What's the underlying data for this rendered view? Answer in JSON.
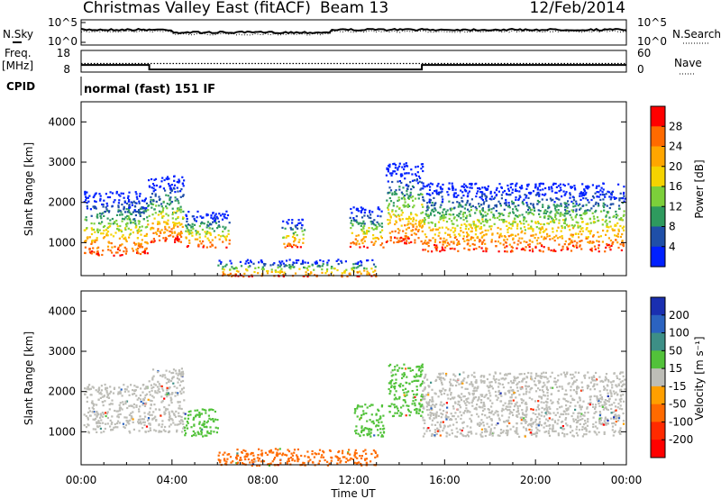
{
  "header": {
    "station": "Christmas Valley East (fitACF)",
    "beam": "Beam 13",
    "date": "12/Feb/2014"
  },
  "housekeeping": {
    "nsky_label": "N.Sky",
    "nsky_ticks": [
      "10^5",
      "10^0"
    ],
    "nsearch_label": "N.Search",
    "nsearch_ticks": [
      "10^5",
      "10^0"
    ],
    "freq_label_line1": "Freq.",
    "freq_label_line2": "[MHz]",
    "freq_ticks": [
      "18",
      "8"
    ],
    "nave_label": "Nave",
    "nave_ticks": [
      "60",
      "0"
    ],
    "cpid_label": "CPID",
    "cpid_text": "normal (fast) 151 IF"
  },
  "power_panel": {
    "ylabel": "Slant Range [km]",
    "yticks": [
      "4000",
      "3000",
      "2000",
      "1000"
    ],
    "colorbar_label": "Power [dB]",
    "colorbar_ticks": [
      "28",
      "24",
      "20",
      "16",
      "12",
      "8",
      "4"
    ],
    "colors": [
      "#ff0000",
      "#ff6a00",
      "#ffa600",
      "#f5d300",
      "#7ccf3a",
      "#2e9a5e",
      "#1f4fa8",
      "#0020ff"
    ]
  },
  "velocity_panel": {
    "ylabel": "Slant Range [km]",
    "yticks": [
      "4000",
      "3000",
      "2000",
      "1000"
    ],
    "colorbar_label": "Velocity [m s⁻¹]",
    "colorbar_ticks": [
      "200",
      "100",
      "50",
      "15",
      "-15",
      "-50",
      "-100",
      "-200"
    ],
    "colors": [
      "#1a2fb0",
      "#2b63c0",
      "#3d8f86",
      "#52c23a",
      "#bdbdb7",
      "#ff9f00",
      "#ff6a00",
      "#ff2a00",
      "#ff0000"
    ]
  },
  "x_axis": {
    "ticks": [
      "00:00",
      "04:00",
      "08:00",
      "12:00",
      "16:00",
      "20:00",
      "00:00"
    ],
    "label": "Time UT"
  },
  "chart_data": {
    "type": "heatmap",
    "x_range_hours": [
      0,
      24
    ],
    "y_range_km": [
      180,
      4500
    ],
    "frequency_mhz": [
      {
        "x": 0,
        "y": 11.3
      },
      {
        "x": 3,
        "y": 11.3
      },
      {
        "x": 3,
        "y": 9.2
      },
      {
        "x": 15,
        "y": 9.2
      },
      {
        "x": 15,
        "y": 11.3
      },
      {
        "x": 24,
        "y": 11.3
      }
    ],
    "power_regions": [
      {
        "t0": 0.1,
        "t1": 2.9,
        "r0": 700,
        "r1": 2300,
        "peak_db": 26
      },
      {
        "t0": 2.9,
        "t1": 4.5,
        "r0": 1000,
        "r1": 2700,
        "peak_db": 24
      },
      {
        "t0": 4.5,
        "t1": 6.5,
        "r0": 900,
        "r1": 1800,
        "peak_db": 20
      },
      {
        "t0": 6.0,
        "t1": 13.0,
        "r0": 180,
        "r1": 600,
        "peak_db": 12
      },
      {
        "t0": 8.8,
        "t1": 9.8,
        "r0": 900,
        "r1": 1600,
        "peak_db": 20
      },
      {
        "t0": 11.8,
        "t1": 13.3,
        "r0": 900,
        "r1": 1900,
        "peak_db": 22
      },
      {
        "t0": 13.4,
        "t1": 15.0,
        "r0": 1000,
        "r1": 3000,
        "peak_db": 24
      },
      {
        "t0": 15.0,
        "t1": 23.9,
        "r0": 800,
        "r1": 2500,
        "peak_db": 28
      }
    ],
    "velocity_regions": [
      {
        "t0": 0.1,
        "t1": 2.9,
        "r0": 1000,
        "r1": 2200,
        "velocity": -10
      },
      {
        "t0": 2.9,
        "t1": 4.5,
        "r0": 1000,
        "r1": 2600,
        "velocity": -10
      },
      {
        "t0": 4.5,
        "t1": 6.0,
        "r0": 900,
        "r1": 1600,
        "velocity": 40
      },
      {
        "t0": 6.0,
        "t1": 13.0,
        "r0": 180,
        "r1": 600,
        "velocity": -60
      },
      {
        "t0": 12.0,
        "t1": 13.3,
        "r0": 900,
        "r1": 1700,
        "velocity": 30
      },
      {
        "t0": 13.5,
        "t1": 15.0,
        "r0": 1400,
        "r1": 2700,
        "velocity": 40
      },
      {
        "t0": 15.0,
        "t1": 23.9,
        "r0": 900,
        "r1": 2500,
        "velocity": -10
      }
    ]
  }
}
